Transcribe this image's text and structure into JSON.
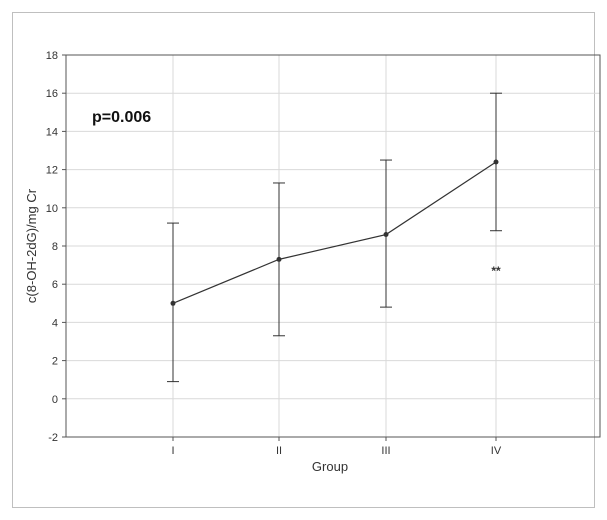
{
  "chart_data": {
    "type": "line",
    "title": "",
    "xlabel": "Group",
    "ylabel": "c(8-OH-2dG)/mg Cr",
    "categories": [
      "I",
      "II",
      "III",
      "IV"
    ],
    "series": [
      {
        "values": [
          5.0,
          7.3,
          8.6,
          12.4
        ],
        "error_low": [
          0.9,
          3.3,
          4.8,
          8.8
        ],
        "error_high": [
          9.2,
          11.3,
          12.5,
          16.0
        ]
      }
    ],
    "ylim": [
      -2,
      18
    ],
    "yticks": [
      -2,
      0,
      2,
      4,
      6,
      8,
      10,
      12,
      14,
      16,
      18
    ],
    "grid": true,
    "annotations": [
      {
        "text": "p=0.006"
      },
      {
        "text": "**",
        "category": "IV",
        "y": 6.7
      }
    ],
    "colors": {
      "line": "#333333",
      "grid": "#d9d9d9",
      "axis": "#555555"
    }
  }
}
